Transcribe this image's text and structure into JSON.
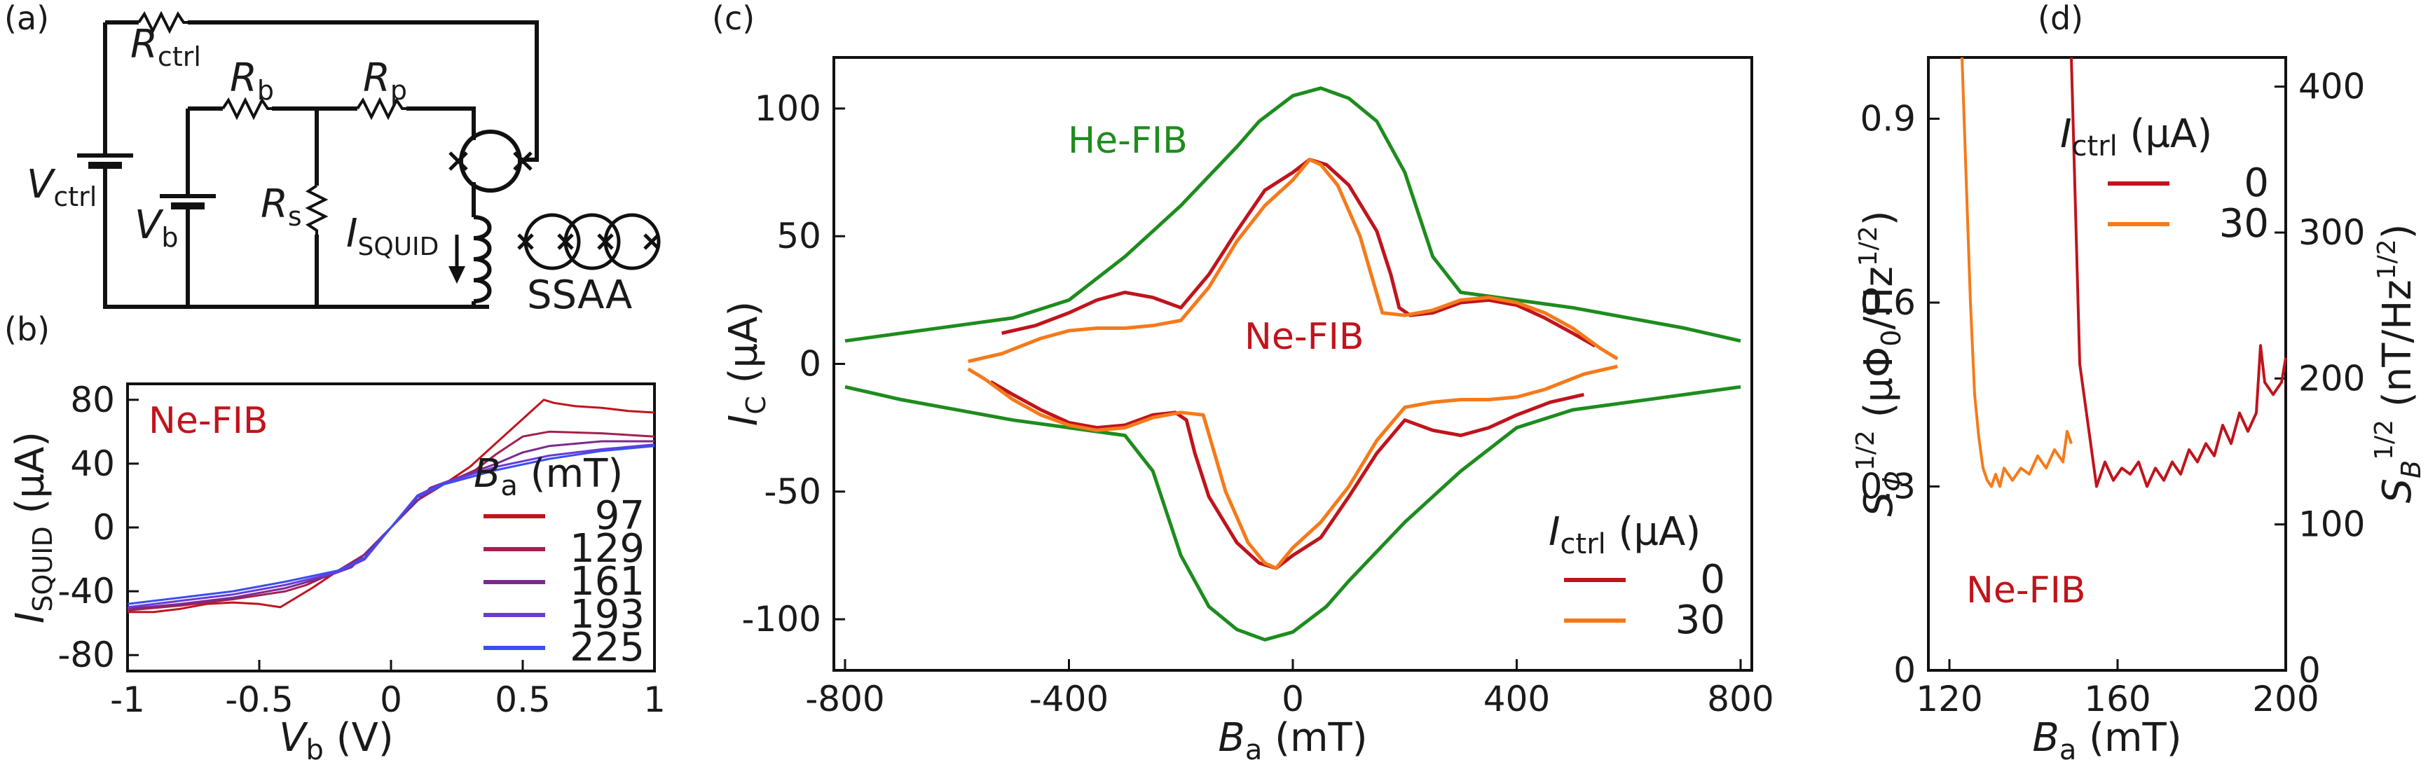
{
  "colors": {
    "red": "#c0141c",
    "orange": "#f57a1a",
    "green": "#1e8c1e",
    "b129": "#a32050",
    "b161": "#7a2a8e",
    "b193": "#6a3ad8",
    "b225": "#3a4ef0",
    "axis": "#111111"
  },
  "panel_a": {
    "label": "(a)",
    "r_ctrl": {
      "main": "R",
      "sub": "ctrl"
    },
    "r_b": {
      "main": "R",
      "sub": "b"
    },
    "r_p": {
      "main": "R",
      "sub": "p"
    },
    "r_s": {
      "main": "R",
      "sub": "s"
    },
    "v_ctrl": {
      "main": "V",
      "sub": "ctrl"
    },
    "v_b": {
      "main": "V",
      "sub": "b"
    },
    "i_squid": {
      "main": "I",
      "sub": "SQUID"
    },
    "ssaa": "SSAA"
  },
  "chart_data": [
    {
      "panel": "(b)",
      "type": "line",
      "annotation": "Ne-FIB",
      "xlabel": {
        "main": "V",
        "sub": "b",
        "unit": " (V)"
      },
      "ylabel": {
        "main": "I",
        "sub": "SQUID",
        "unit": " (µA)"
      },
      "xlim": [
        -1,
        1
      ],
      "ylim": [
        -90,
        90
      ],
      "xticks": [
        -1,
        -0.5,
        0,
        0.5,
        1
      ],
      "xtick_labels": [
        "-1",
        "-0.5",
        "0",
        "0.5",
        "1"
      ],
      "yticks": [
        -80,
        -40,
        0,
        40,
        80
      ],
      "ytick_labels": [
        "-80",
        "-40",
        "0",
        "40",
        "80"
      ],
      "legend": {
        "title_main": "B",
        "title_sub": "a",
        "title_unit": " (mT)",
        "placement": "right"
      },
      "series": [
        {
          "name": "97",
          "color": "#c0141c",
          "x": [
            -1,
            -0.9,
            -0.8,
            -0.7,
            -0.6,
            -0.5,
            -0.42,
            -0.3,
            -0.2,
            -0.1,
            0,
            0.1,
            0.2,
            0.3,
            0.42,
            0.5,
            0.58,
            0.62,
            0.7,
            0.8,
            0.9,
            1
          ],
          "y": [
            -53,
            -53,
            -51,
            -48,
            -47,
            -48,
            -50,
            -38,
            -27,
            -17,
            0,
            17,
            27,
            38,
            56,
            68,
            80,
            78,
            76,
            75,
            73,
            72
          ]
        },
        {
          "name": "129",
          "color": "#a32050",
          "x": [
            -1,
            -0.8,
            -0.6,
            -0.4,
            -0.32,
            -0.2,
            -0.1,
            0,
            0.1,
            0.2,
            0.32,
            0.4,
            0.5,
            0.6,
            0.8,
            1
          ],
          "y": [
            -52,
            -49,
            -45,
            -40,
            -36,
            -27,
            -17,
            0,
            17,
            27,
            36,
            46,
            57,
            60,
            59,
            57
          ]
        },
        {
          "name": "161",
          "color": "#7a2a8e",
          "x": [
            -1,
            -0.8,
            -0.6,
            -0.4,
            -0.25,
            -0.15,
            0,
            0.15,
            0.25,
            0.4,
            0.5,
            0.6,
            0.8,
            1
          ],
          "y": [
            -51,
            -48,
            -44,
            -38,
            -31,
            -25,
            0,
            25,
            31,
            40,
            47,
            51,
            54,
            54
          ]
        },
        {
          "name": "193",
          "color": "#6a3ad8",
          "x": [
            -1,
            -0.8,
            -0.6,
            -0.4,
            -0.2,
            -0.1,
            0,
            0.1,
            0.2,
            0.4,
            0.6,
            0.8,
            1
          ],
          "y": [
            -50,
            -46,
            -42,
            -36,
            -28,
            -20,
            0,
            20,
            28,
            38,
            45,
            49,
            52
          ]
        },
        {
          "name": "225",
          "color": "#3a4ef0",
          "x": [
            -1,
            -0.8,
            -0.6,
            -0.4,
            -0.2,
            -0.1,
            0,
            0.1,
            0.2,
            0.4,
            0.6,
            0.8,
            1
          ],
          "y": [
            -48,
            -44,
            -40,
            -34,
            -27,
            -19,
            0,
            19,
            27,
            36,
            43,
            48,
            51
          ]
        }
      ]
    },
    {
      "panel": "(c)",
      "type": "line",
      "annotations": [
        {
          "text": "He-FIB",
          "color": "#1e8c1e"
        },
        {
          "text": "Ne-FIB",
          "color": "#c0141c"
        }
      ],
      "xlabel": {
        "main": "B",
        "sub": "a",
        "unit": " (mT)"
      },
      "ylabel": {
        "main": "I",
        "sub": "C",
        "unit": " (µA)"
      },
      "xlim": [
        -820,
        820
      ],
      "ylim": [
        -120,
        120
      ],
      "xticks": [
        -800,
        -400,
        0,
        400,
        800
      ],
      "xtick_labels": [
        "-800",
        "-400",
        "0",
        "400",
        "800"
      ],
      "yticks": [
        -100,
        -50,
        0,
        50,
        100
      ],
      "ytick_labels": [
        "-100",
        "-50",
        "0",
        "50",
        "100"
      ],
      "legend": {
        "title_main": "I",
        "title_sub": "ctrl",
        "title_unit": " (µA)",
        "placement": "bottom-right"
      },
      "series": [
        {
          "name": "He-FIB",
          "legend": false,
          "color": "#1e8c1e",
          "x": [
            -800,
            -700,
            -600,
            -500,
            -400,
            -300,
            -200,
            -100,
            -80,
            -60,
            0,
            50,
            100,
            150,
            200,
            250,
            300,
            400,
            500,
            600,
            700,
            800
          ],
          "y": [
            9,
            12,
            15,
            18,
            25,
            42,
            62,
            85,
            90,
            95,
            105,
            108,
            104,
            95,
            75,
            42,
            28,
            25,
            22,
            18,
            14,
            9
          ],
          "neg": true
        },
        {
          "name": "0",
          "legend": true,
          "color": "#c0141c",
          "x": [
            -520,
            -460,
            -400,
            -350,
            -300,
            -250,
            -200,
            -150,
            -100,
            -50,
            0,
            30,
            60,
            100,
            150,
            175,
            190,
            210,
            250,
            300,
            350,
            400,
            450,
            500,
            540
          ],
          "y": [
            12,
            15,
            20,
            25,
            28,
            26,
            22,
            35,
            52,
            68,
            75,
            80,
            78,
            70,
            52,
            35,
            22,
            19,
            20,
            24,
            25,
            23,
            18,
            12,
            7
          ],
          "neg": true
        },
        {
          "name": "30",
          "legend": true,
          "color": "#f57a1a",
          "x": [
            -580,
            -520,
            -450,
            -400,
            -350,
            -300,
            -250,
            -200,
            -150,
            -100,
            -50,
            0,
            30,
            50,
            80,
            120,
            140,
            160,
            200,
            250,
            300,
            350,
            400,
            450,
            500,
            550,
            580
          ],
          "y": [
            1,
            4,
            10,
            13,
            14,
            14,
            15,
            17,
            30,
            48,
            62,
            72,
            80,
            78,
            70,
            50,
            35,
            20,
            19,
            21,
            25,
            26,
            24,
            20,
            14,
            6,
            2
          ],
          "neg": true
        }
      ]
    },
    {
      "panel": "(d)",
      "type": "line",
      "annotation": "Ne-FIB",
      "xlabel": {
        "main": "B",
        "sub": "a",
        "unit": " (mT)"
      },
      "ylabel_left": "S_Φ^1/2 (µΦ0/Hz^1/2)",
      "ylabel_left_parts": {
        "main": "S",
        "sub": "Φ",
        "sup": "1/2",
        "unit": " (µΦ",
        "unit_sub": "0",
        "unit_tail": "/Hz",
        "unit_sup": "1/2",
        "unit_end": ")"
      },
      "ylabel_right_parts": {
        "main": "S",
        "sub": "B",
        "sup": "1/2",
        "unit": " (nT/Hz",
        "unit_sup": "1/2",
        "unit_end": ")"
      },
      "xlim": [
        115,
        200
      ],
      "ylim": [
        0,
        1.0
      ],
      "ylim_right": [
        0,
        420
      ],
      "xticks": [
        120,
        160,
        200
      ],
      "xtick_labels": [
        "120",
        "160",
        "200"
      ],
      "yticks": [
        0,
        0.3,
        0.6,
        0.9
      ],
      "ytick_labels": [
        "0",
        "0.3",
        "0.6",
        "0.9"
      ],
      "yticks_right": [
        0,
        100,
        200,
        300,
        400
      ],
      "ytick_labels_right": [
        "0",
        "100",
        "200",
        "300",
        "400"
      ],
      "legend": {
        "title_main": "I",
        "title_sub": "ctrl",
        "title_unit": " (µA)",
        "placement": "top-right"
      },
      "series": [
        {
          "name": "0",
          "color": "#c0141c",
          "x": [
            149,
            150,
            151,
            153,
            155,
            157,
            159,
            161,
            163,
            165,
            167,
            169,
            171,
            173,
            175,
            177,
            179,
            181,
            183,
            185,
            187,
            189,
            191,
            193,
            194,
            195,
            197,
            199,
            200
          ],
          "y": [
            1.0,
            0.75,
            0.5,
            0.4,
            0.3,
            0.34,
            0.31,
            0.33,
            0.32,
            0.34,
            0.3,
            0.33,
            0.31,
            0.34,
            0.32,
            0.36,
            0.34,
            0.37,
            0.35,
            0.4,
            0.37,
            0.42,
            0.39,
            0.42,
            0.53,
            0.47,
            0.45,
            0.47,
            0.51
          ]
        },
        {
          "name": "30",
          "color": "#f57a1a",
          "x": [
            123,
            124,
            125,
            126,
            127,
            128,
            129,
            130,
            131,
            132,
            133,
            135,
            137,
            139,
            141,
            143,
            145,
            147,
            148,
            149
          ],
          "y": [
            1.0,
            0.8,
            0.6,
            0.45,
            0.38,
            0.33,
            0.31,
            0.3,
            0.32,
            0.3,
            0.33,
            0.31,
            0.33,
            0.32,
            0.35,
            0.33,
            0.36,
            0.34,
            0.39,
            0.37
          ]
        }
      ]
    }
  ]
}
